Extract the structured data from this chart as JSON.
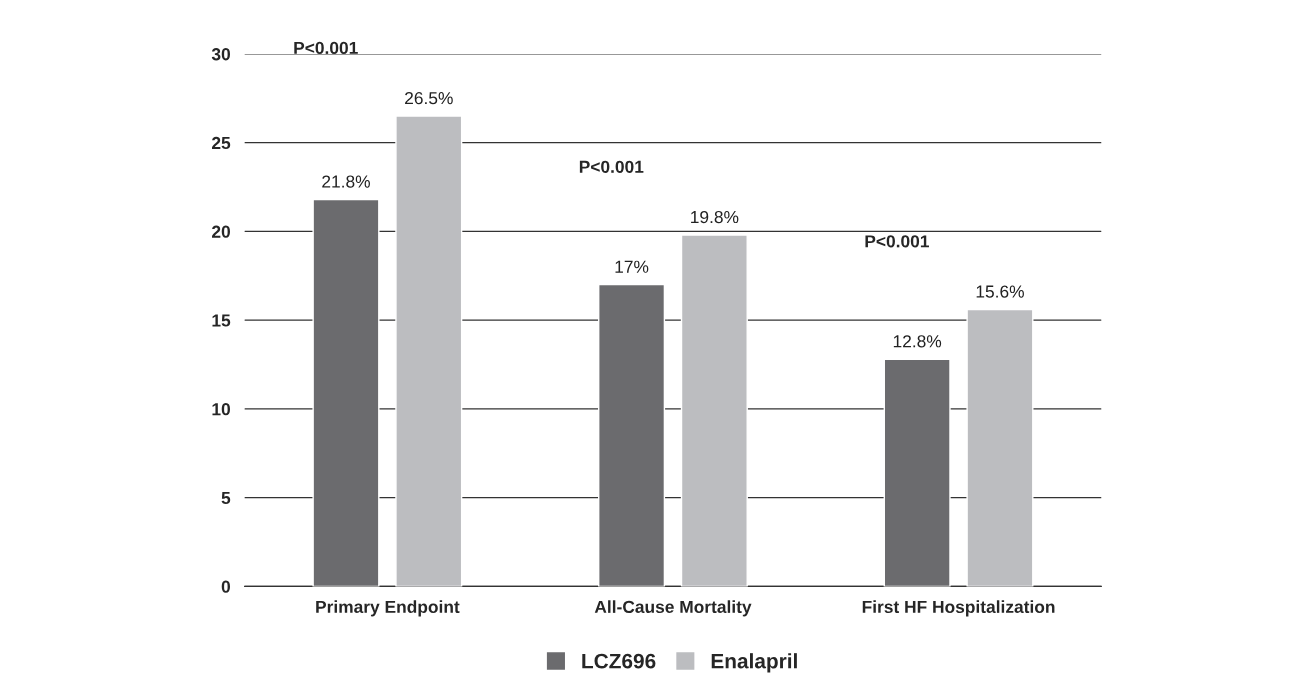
{
  "chart_data": {
    "type": "bar",
    "categories": [
      "Primary Endpoint",
      "All-Cause Mortality",
      "First HF Hospitalization"
    ],
    "series": [
      {
        "name": "LCZ696",
        "color": "#6b6b6e",
        "values": [
          21.8,
          17,
          12.8
        ],
        "value_labels": [
          "21.8%",
          "17%",
          "12.8%"
        ]
      },
      {
        "name": "Enalapril",
        "color": "#bcbdc0",
        "values": [
          26.5,
          19.8,
          15.6
        ],
        "value_labels": [
          "26.5%",
          "19.8%",
          "15.6%"
        ]
      }
    ],
    "ylim": [
      0,
      30
    ],
    "yticks": [
      0,
      5,
      10,
      15,
      20,
      25,
      30
    ],
    "grid": "y",
    "legend": "bottom",
    "annotations": [
      "P<0.001",
      "P<0.001",
      "P<0.001"
    ]
  }
}
